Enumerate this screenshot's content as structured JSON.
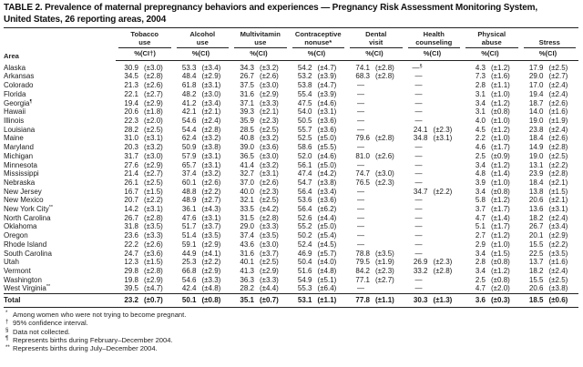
{
  "title": {
    "line1": "TABLE 2. Prevalence of maternal prepregnancy behaviors and experiences — Pregnancy Risk Assessment Monitoring System,",
    "line2": "United States, 26 reporting areas, 2004"
  },
  "table": {
    "area_header": "Area",
    "groups": [
      {
        "label": "Tobacco use",
        "pct_h": "%",
        "ci_h": "(CI†)"
      },
      {
        "label": "Alcohol use",
        "pct_h": "%",
        "ci_h": "(CI)"
      },
      {
        "label": "Multivitamin use",
        "pct_h": "%",
        "ci_h": "(CI)"
      },
      {
        "label": "Contraceptive nonuse*",
        "pct_h": "%",
        "ci_h": "(CI)"
      },
      {
        "label": "Dental visit",
        "pct_h": "%",
        "ci_h": "(CI)"
      },
      {
        "label": "Health counseling",
        "pct_h": "%",
        "ci_h": "(CI)"
      },
      {
        "label": "Physical abuse",
        "pct_h": "%",
        "ci_h": "(CI)"
      },
      {
        "label": "Stress",
        "pct_h": "%",
        "ci_h": "(CI)"
      }
    ],
    "rows": [
      {
        "area": "Alaska",
        "cells": [
          "30.9",
          "(±3.0)",
          "53.3",
          "(±3.4)",
          "34.3",
          "(±3.2)",
          "54.2",
          "(±4.7)",
          "74.1",
          "(±2.8)",
          "—§",
          "",
          "4.3",
          "(±1.2)",
          "17.9",
          "(±2.5)"
        ]
      },
      {
        "area": "Arkansas",
        "cells": [
          "34.5",
          "(±2.8)",
          "48.4",
          "(±2.9)",
          "26.7",
          "(±2.6)",
          "53.2",
          "(±3.9)",
          "68.3",
          "(±2.8)",
          "—",
          "",
          "7.3",
          "(±1.6)",
          "29.0",
          "(±2.7)"
        ]
      },
      {
        "area": "Colorado",
        "cells": [
          "21.3",
          "(±2.6)",
          "61.8",
          "(±3.1)",
          "37.5",
          "(±3.0)",
          "53.8",
          "(±4.7)",
          "—",
          "",
          "—",
          "",
          "2.8",
          "(±1.1)",
          "17.0",
          "(±2.4)"
        ]
      },
      {
        "area": "Florida",
        "cells": [
          "22.1",
          "(±2.7)",
          "48.2",
          "(±3.0)",
          "31.6",
          "(±2.9)",
          "55.4",
          "(±3.9)",
          "—",
          "",
          "—",
          "",
          "3.1",
          "(±1.0)",
          "19.4",
          "(±2.4)"
        ]
      },
      {
        "area": "Georgia¶",
        "cells": [
          "19.4",
          "(±2.9)",
          "41.2",
          "(±3.4)",
          "37.1",
          "(±3.3)",
          "47.5",
          "(±4.6)",
          "—",
          "",
          "—",
          "",
          "3.4",
          "(±1.2)",
          "18.7",
          "(±2.6)"
        ]
      },
      {
        "area": "Hawaii",
        "cells": [
          "20.6",
          "(±1.8)",
          "42.1",
          "(±2.1)",
          "39.3",
          "(±2.1)",
          "54.0",
          "(±3.1)",
          "—",
          "",
          "—",
          "",
          "3.1",
          "(±0.8)",
          "14.0",
          "(±1.6)"
        ]
      },
      {
        "area": "Illinois",
        "cells": [
          "22.3",
          "(±2.0)",
          "54.6",
          "(±2.4)",
          "35.9",
          "(±2.3)",
          "50.5",
          "(±3.6)",
          "—",
          "",
          "—",
          "",
          "4.0",
          "(±1.0)",
          "19.0",
          "(±1.9)"
        ]
      },
      {
        "area": "Louisiana",
        "cells": [
          "28.2",
          "(±2.5)",
          "54.4",
          "(±2.8)",
          "28.5",
          "(±2.5)",
          "55.7",
          "(±3.6)",
          "—",
          "",
          "24.1",
          "(±2.3)",
          "4.5",
          "(±1.2)",
          "23.8",
          "(±2.4)"
        ]
      },
      {
        "area": "Maine",
        "cells": [
          "31.0",
          "(±3.1)",
          "62.4",
          "(±3.2)",
          "40.8",
          "(±3.2)",
          "52.5",
          "(±5.0)",
          "79.6",
          "(±2.8)",
          "34.8",
          "(±3.1)",
          "2.2",
          "(±1.0)",
          "18.4",
          "(±2.6)"
        ]
      },
      {
        "area": "Maryland",
        "cells": [
          "20.3",
          "(±3.2)",
          "50.9",
          "(±3.8)",
          "39.0",
          "(±3.6)",
          "58.6",
          "(±5.5)",
          "—",
          "",
          "—",
          "",
          "4.6",
          "(±1.7)",
          "14.9",
          "(±2.8)"
        ]
      },
      {
        "area": "Michigan",
        "cells": [
          "31.7",
          "(±3.0)",
          "57.9",
          "(±3.1)",
          "36.5",
          "(±3.0)",
          "52.0",
          "(±4.6)",
          "81.0",
          "(±2.6)",
          "—",
          "",
          "2.5",
          "(±0.9)",
          "19.0",
          "(±2.5)"
        ]
      },
      {
        "area": "Minnesota",
        "cells": [
          "27.6",
          "(±2.9)",
          "65.7",
          "(±3.1)",
          "41.4",
          "(±3.2)",
          "56.1",
          "(±5.0)",
          "—",
          "",
          "—",
          "",
          "3.4",
          "(±1.2)",
          "13.1",
          "(±2.2)"
        ]
      },
      {
        "area": "Mississippi",
        "cells": [
          "21.4",
          "(±2.7)",
          "37.4",
          "(±3.2)",
          "32.7",
          "(±3.1)",
          "47.4",
          "(±4.2)",
          "74.7",
          "(±3.0)",
          "—",
          "",
          "4.8",
          "(±1.4)",
          "23.9",
          "(±2.8)"
        ]
      },
      {
        "area": "Nebraska",
        "cells": [
          "26.1",
          "(±2.5)",
          "60.1",
          "(±2.6)",
          "37.0",
          "(±2.6)",
          "54.7",
          "(±3.8)",
          "76.5",
          "(±2.3)",
          "—",
          "",
          "3.9",
          "(±1.0)",
          "18.4",
          "(±2.1)"
        ]
      },
      {
        "area": "New Jersey",
        "cells": [
          "16.7",
          "(±1.5)",
          "48.8",
          "(±2.2)",
          "40.0",
          "(±2.3)",
          "56.4",
          "(±3.4)",
          "—",
          "",
          "34.7",
          "(±2.2)",
          "3.4",
          "(±0.8)",
          "13.8",
          "(±1.5)"
        ]
      },
      {
        "area": "New Mexico",
        "cells": [
          "20.7",
          "(±2.2)",
          "48.9",
          "(±2.7)",
          "32.1",
          "(±2.5)",
          "53.6",
          "(±3.6)",
          "—",
          "",
          "—",
          "",
          "5.8",
          "(±1.2)",
          "20.6",
          "(±2.1)"
        ]
      },
      {
        "area": "New York City**",
        "cells": [
          "14.2",
          "(±3.1)",
          "36.1",
          "(±4.3)",
          "33.5",
          "(±4.2)",
          "56.4",
          "(±6.2)",
          "—",
          "",
          "—",
          "",
          "3.7",
          "(±1.7)",
          "13.6",
          "(±3.1)"
        ]
      },
      {
        "area": "North Carolina",
        "cells": [
          "26.7",
          "(±2.8)",
          "47.6",
          "(±3.1)",
          "31.5",
          "(±2.8)",
          "52.6",
          "(±4.4)",
          "—",
          "",
          "—",
          "",
          "4.7",
          "(±1.4)",
          "18.2",
          "(±2.4)"
        ]
      },
      {
        "area": "Oklahoma",
        "cells": [
          "31.8",
          "(±3.5)",
          "51.7",
          "(±3.7)",
          "29.0",
          "(±3.3)",
          "55.2",
          "(±5.0)",
          "—",
          "",
          "—",
          "",
          "5.1",
          "(±1.7)",
          "26.7",
          "(±3.4)"
        ]
      },
      {
        "area": "Oregon",
        "cells": [
          "23.6",
          "(±3.3)",
          "51.4",
          "(±3.5)",
          "37.4",
          "(±3.5)",
          "50.2",
          "(±5.4)",
          "—",
          "",
          "—",
          "",
          "2.7",
          "(±1.2)",
          "20.1",
          "(±2.9)"
        ]
      },
      {
        "area": "Rhode Island",
        "cells": [
          "22.2",
          "(±2.6)",
          "59.1",
          "(±2.9)",
          "43.6",
          "(±3.0)",
          "52.4",
          "(±4.5)",
          "—",
          "",
          "—",
          "",
          "2.9",
          "(±1.0)",
          "15.5",
          "(±2.2)"
        ]
      },
      {
        "area": "South Carolina",
        "cells": [
          "24.7",
          "(±3.6)",
          "44.9",
          "(±4.1)",
          "31.6",
          "(±3.7)",
          "46.9",
          "(±5.7)",
          "78.8",
          "(±3.5)",
          "—",
          "",
          "3.4",
          "(±1.5)",
          "22.5",
          "(±3.5)"
        ]
      },
      {
        "area": "Utah",
        "cells": [
          "12.3",
          "(±1.5)",
          "25.3",
          "(±2.2)",
          "40.1",
          "(±2.5)",
          "50.4",
          "(±4.0)",
          "79.5",
          "(±1.9)",
          "26.9",
          "(±2.3)",
          "2.8",
          "(±0.8)",
          "13.7",
          "(±1.6)"
        ]
      },
      {
        "area": "Vermont",
        "cells": [
          "29.8",
          "(±2.8)",
          "66.8",
          "(±2.9)",
          "41.3",
          "(±2.9)",
          "51.6",
          "(±4.8)",
          "84.2",
          "(±2.3)",
          "33.2",
          "(±2.8)",
          "3.4",
          "(±1.2)",
          "18.2",
          "(±2.4)"
        ]
      },
      {
        "area": "Washington",
        "cells": [
          "19.8",
          "(±2.9)",
          "54.6",
          "(±3.3)",
          "36.3",
          "(±3.3)",
          "54.9",
          "(±5.1)",
          "77.1",
          "(±2.7)",
          "—",
          "",
          "2.5",
          "(±0.8)",
          "15.5",
          "(±2.5)"
        ]
      },
      {
        "area": "West Virginia**",
        "cells": [
          "39.5",
          "(±4.7)",
          "42.4",
          "(±4.8)",
          "28.2",
          "(±4.4)",
          "55.3",
          "(±6.4)",
          "—",
          "",
          "—",
          "",
          "4.7",
          "(±2.0)",
          "20.6",
          "(±3.8)"
        ]
      }
    ],
    "total": {
      "area": "Total",
      "cells": [
        "23.2",
        "(±0.7)",
        "50.1",
        "(±0.8)",
        "35.1",
        "(±0.7)",
        "53.1",
        "(±1.1)",
        "77.8",
        "(±1.1)",
        "30.3",
        "(±1.3)",
        "3.6",
        "(±0.3)",
        "18.5",
        "(±0.6)"
      ]
    }
  },
  "footnotes": [
    {
      "marker": "*",
      "text": "Among women who were not trying to become pregnant."
    },
    {
      "marker": "†",
      "text": "95% confidence interval."
    },
    {
      "marker": "§",
      "text": "Data not collected."
    },
    {
      "marker": "¶",
      "text": "Represents births during February–December 2004."
    },
    {
      "marker": "**",
      "text": "Represents births during July–December 2004."
    }
  ]
}
